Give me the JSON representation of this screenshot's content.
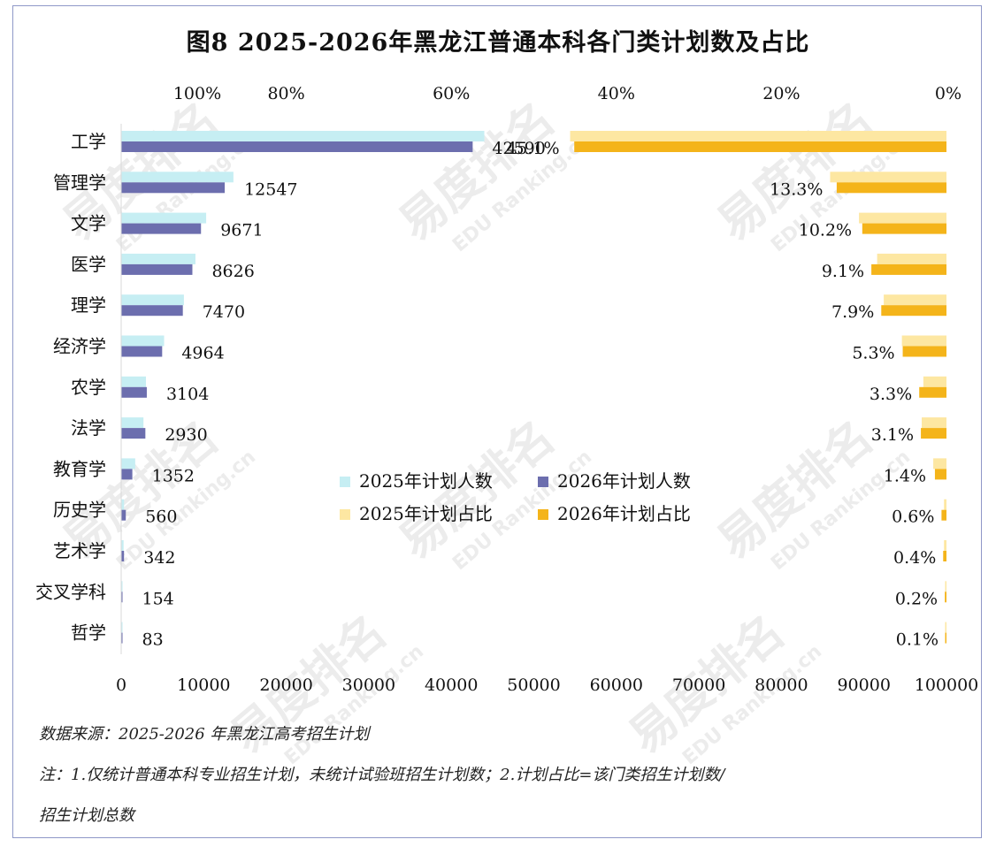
{
  "title": "图8  2025-2026年黑龙江普通本科各门类计划数及占比",
  "source": "数据来源：2025-2026 年黑龙江高考招生计划",
  "note_line1": "注：1.仅统计普通本科专业招生计划，未统计试验班招生计划数；2.计划占比=该门类招生计划数/",
  "note_line2": "招生计划总数",
  "watermark": {
    "brand": "易度排名",
    "sub": "EDU Ranking.cn"
  },
  "colors": {
    "count_2025": "#c6eef3",
    "count_2026": "#6c6eae",
    "share_2025": "#fde7a2",
    "share_2026": "#f4b41a"
  },
  "chart_data": {
    "type": "bar",
    "orientation": "horizontal",
    "categories": [
      "工学",
      "管理学",
      "文学",
      "医学",
      "理学",
      "经济学",
      "农学",
      "法学",
      "教育学",
      "历史学",
      "艺术学",
      "交叉学科",
      "哲学"
    ],
    "series": [
      {
        "name": "2025年计划人数",
        "axis": "bottom",
        "values": [
          44000,
          13600,
          10300,
          9000,
          7600,
          5200,
          3000,
          2700,
          1700,
          350,
          290,
          90,
          80
        ]
      },
      {
        "name": "2026年计划人数",
        "axis": "bottom",
        "values": [
          42590,
          12547,
          9671,
          8626,
          7470,
          4964,
          3104,
          2930,
          1352,
          560,
          342,
          154,
          83
        ]
      },
      {
        "name": "2025年计划占比",
        "axis": "top",
        "values": [
          45.6,
          14.1,
          10.6,
          8.4,
          7.6,
          5.4,
          2.8,
          3.0,
          1.6,
          0.3,
          0.3,
          0.1,
          0.1
        ]
      },
      {
        "name": "2026年计划占比",
        "axis": "top",
        "values": [
          45.1,
          13.3,
          10.2,
          9.1,
          7.9,
          5.3,
          3.3,
          3.1,
          1.4,
          0.6,
          0.4,
          0.2,
          0.1
        ]
      }
    ],
    "count_labels": [
      "42590",
      "12547",
      "9671",
      "8626",
      "7470",
      "4964",
      "3104",
      "2930",
      "1352",
      "560",
      "342",
      "154",
      "83"
    ],
    "share_labels": [
      "45.1%",
      "13.3%",
      "10.2%",
      "9.1%",
      "7.9%",
      "5.3%",
      "3.3%",
      "3.1%",
      "1.4%",
      "0.6%",
      "0.4%",
      "0.2%",
      "0.1%"
    ],
    "bottom_axis": {
      "range": [
        0,
        100000
      ],
      "ticks": [
        "0",
        "10000",
        "20000",
        "30000",
        "40000",
        "50000",
        "60000",
        "70000",
        "80000",
        "90000",
        "100000"
      ]
    },
    "top_axis": {
      "range": [
        100,
        0
      ],
      "reversed": true,
      "ticks": [
        "100%",
        "80%",
        "60%",
        "40%",
        "20%",
        "0%"
      ]
    },
    "legend": [
      {
        "label": "2025年计划人数",
        "color": "#c6eef3"
      },
      {
        "label": "2026年计划人数",
        "color": "#6c6eae"
      },
      {
        "label": "2025年计划占比",
        "color": "#fde7a2"
      },
      {
        "label": "2026年计划占比",
        "color": "#f4b41a"
      }
    ],
    "legend_position": "center"
  }
}
